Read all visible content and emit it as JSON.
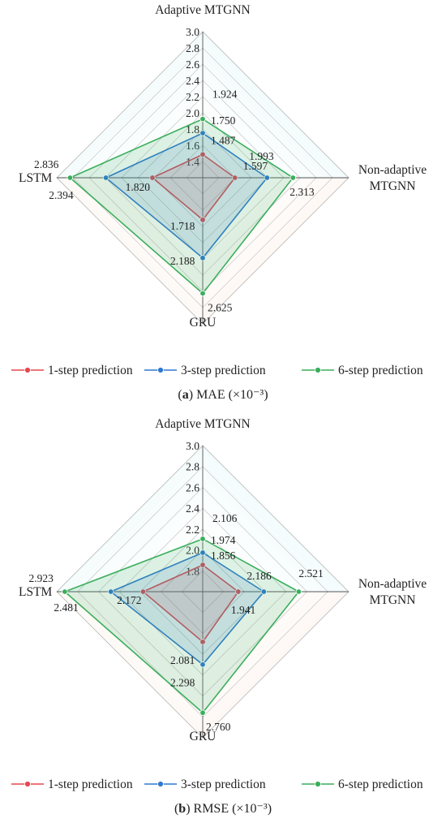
{
  "chart_data": [
    {
      "type": "radar",
      "caption_letter": "a",
      "caption_text": "MAE (×10⁻³)",
      "axes": [
        "Adaptive MTGNN",
        "Non-adaptive MTGNN",
        "GRU",
        "LSTM"
      ],
      "axis_label_lines": [
        [
          "Adaptive MTGNN"
        ],
        [
          "Non-adaptive",
          "MTGNN"
        ],
        [
          "GRU"
        ],
        [
          "LSTM"
        ]
      ],
      "rmin": 1.2,
      "rmax": 3.0,
      "ticks": [
        "1.4",
        "1.6",
        "1.8",
        "2.0",
        "2.2",
        "2.4",
        "2.6",
        "2.8",
        "3.0"
      ],
      "series": [
        {
          "name": "1-step prediction",
          "color": "#e8474f",
          "values": [
            1.487,
            1.597,
            1.718,
            1.82
          ],
          "labels": [
            "1.487",
            "1.597",
            "1.718",
            "1.820"
          ]
        },
        {
          "name": "3-step prediction",
          "color": "#2f79d0",
          "values": [
            1.75,
            1.993,
            2.188,
            2.394
          ],
          "labels": [
            "1.750",
            "1.993",
            "2.188",
            "2.394"
          ]
        },
        {
          "name": "6-step prediction",
          "color": "#3aae5c",
          "values": [
            1.924,
            2.313,
            2.625,
            2.836
          ],
          "labels": [
            "1.924",
            "2.313",
            "2.625",
            "2.836"
          ]
        }
      ]
    },
    {
      "type": "radar",
      "caption_letter": "b",
      "caption_text": "RMSE (×10⁻³)",
      "axes": [
        "Adaptive MTGNN",
        "Non-adaptive MTGNN",
        "GRU",
        "LSTM"
      ],
      "axis_label_lines": [
        [
          "Adaptive MTGNN"
        ],
        [
          "Non-adaptive",
          "MTGNN"
        ],
        [
          "GRU"
        ],
        [
          "LSTM"
        ]
      ],
      "rmin": 1.6,
      "rmax": 3.0,
      "ticks": [
        "1.8",
        "2.0",
        "2.2",
        "2.4",
        "2.6",
        "2.8",
        "3.0"
      ],
      "series": [
        {
          "name": "1-step prediction",
          "color": "#e8474f",
          "values": [
            1.856,
            1.941,
            2.081,
            2.172
          ],
          "labels": [
            "1.856",
            "1.941",
            "2.081",
            "2.172"
          ]
        },
        {
          "name": "3-step prediction",
          "color": "#2f79d0",
          "values": [
            1.974,
            2.186,
            2.298,
            2.481
          ],
          "labels": [
            "1.974",
            "2.186",
            "2.298",
            "2.481"
          ]
        },
        {
          "name": "6-step prediction",
          "color": "#3aae5c",
          "values": [
            2.106,
            2.521,
            2.76,
            2.923
          ],
          "labels": [
            "2.106",
            "2.521",
            "2.760",
            "2.923"
          ]
        }
      ]
    }
  ]
}
